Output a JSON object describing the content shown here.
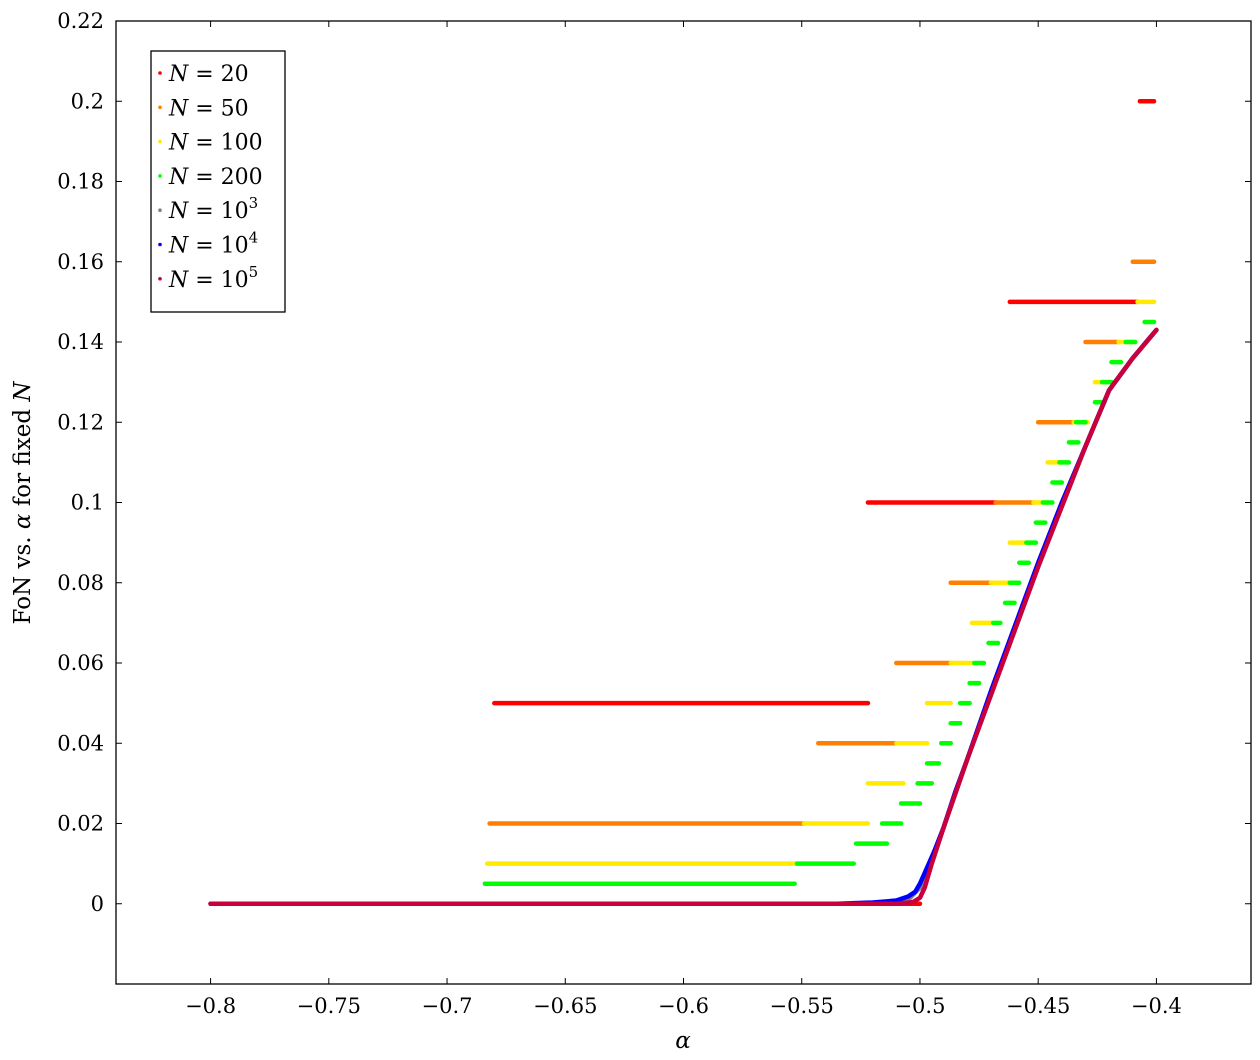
{
  "chart_data": {
    "type": "scatter",
    "title": "",
    "xlabel": "α",
    "ylabel_parts": [
      "FoN vs. ",
      "α",
      " for fixed ",
      "N"
    ],
    "xlim": [
      -0.84,
      -0.36
    ],
    "ylim": [
      -0.02,
      0.22
    ],
    "x_ticks": [
      -0.8,
      -0.75,
      -0.7,
      -0.65,
      -0.6,
      -0.55,
      -0.5,
      -0.45,
      -0.4
    ],
    "x_tick_labels": [
      "−0.8",
      "−0.75",
      "−0.7",
      "−0.65",
      "−0.6",
      "−0.55",
      "−0.5",
      "−0.45",
      "−0.4"
    ],
    "y_ticks": [
      0,
      0.02,
      0.04,
      0.06,
      0.08,
      0.1,
      0.12,
      0.14,
      0.16,
      0.18,
      0.2,
      0.22
    ],
    "y_tick_labels": [
      "0",
      "0.02",
      "0.04",
      "0.06",
      "0.08",
      "0.1",
      "0.12",
      "0.14",
      "0.16",
      "0.18",
      "0.2",
      "0.22"
    ],
    "grid": false,
    "legend_position": "top-left",
    "series": [
      {
        "name": "N = 20",
        "legend": {
          "var": "N",
          "eq": " = ",
          "base": "20",
          "exp": ""
        },
        "color": "#ff0000",
        "segments": [
          {
            "y": 0.0,
            "x": [
              -0.8,
              -0.5
            ]
          },
          {
            "y": 0.05,
            "x": [
              -0.68,
              -0.522
            ]
          },
          {
            "y": 0.1,
            "x": [
              -0.522,
              -0.468
            ]
          },
          {
            "y": 0.15,
            "x": [
              -0.462,
              -0.408
            ]
          },
          {
            "y": 0.2,
            "x": [
              -0.407,
              -0.401
            ]
          }
        ]
      },
      {
        "name": "N = 50",
        "legend": {
          "var": "N",
          "eq": " = ",
          "base": "50",
          "exp": ""
        },
        "color": "#ff8000",
        "segments": [
          {
            "y": 0.02,
            "x": [
              -0.682,
              -0.549
            ]
          },
          {
            "y": 0.04,
            "x": [
              -0.543,
              -0.51
            ]
          },
          {
            "y": 0.06,
            "x": [
              -0.51,
              -0.487
            ]
          },
          {
            "y": 0.08,
            "x": [
              -0.487,
              -0.47
            ]
          },
          {
            "y": 0.1,
            "x": [
              -0.468,
              -0.452
            ]
          },
          {
            "y": 0.12,
            "x": [
              -0.45,
              -0.435
            ]
          },
          {
            "y": 0.14,
            "x": [
              -0.43,
              -0.416
            ]
          },
          {
            "y": 0.16,
            "x": [
              -0.41,
              -0.401
            ]
          }
        ]
      },
      {
        "name": "N = 100",
        "legend": {
          "var": "N",
          "eq": " = ",
          "base": "100",
          "exp": ""
        },
        "color": "#ffea00",
        "segments": [
          {
            "y": 0.01,
            "x": [
              -0.683,
              -0.552
            ]
          },
          {
            "y": 0.02,
            "x": [
              -0.549,
              -0.522
            ]
          },
          {
            "y": 0.03,
            "x": [
              -0.522,
              -0.507
            ]
          },
          {
            "y": 0.04,
            "x": [
              -0.51,
              -0.497
            ]
          },
          {
            "y": 0.05,
            "x": [
              -0.497,
              -0.487
            ]
          },
          {
            "y": 0.06,
            "x": [
              -0.487,
              -0.478
            ]
          },
          {
            "y": 0.07,
            "x": [
              -0.478,
              -0.47
            ]
          },
          {
            "y": 0.08,
            "x": [
              -0.47,
              -0.462
            ]
          },
          {
            "y": 0.09,
            "x": [
              -0.462,
              -0.455
            ]
          },
          {
            "y": 0.1,
            "x": [
              -0.452,
              -0.446
            ]
          },
          {
            "y": 0.11,
            "x": [
              -0.446,
              -0.44
            ]
          },
          {
            "y": 0.12,
            "x": [
              -0.435,
              -0.429
            ]
          },
          {
            "y": 0.13,
            "x": [
              -0.426,
              -0.42
            ]
          },
          {
            "y": 0.14,
            "x": [
              -0.416,
              -0.41
            ]
          },
          {
            "y": 0.15,
            "x": [
              -0.408,
              -0.401
            ]
          }
        ]
      },
      {
        "name": "N = 200",
        "legend": {
          "var": "N",
          "eq": " = ",
          "base": "200",
          "exp": ""
        },
        "color": "#00ff00",
        "segments": [
          {
            "y": 0.005,
            "x": [
              -0.684,
              -0.553
            ]
          },
          {
            "y": 0.01,
            "x": [
              -0.552,
              -0.528
            ]
          },
          {
            "y": 0.015,
            "x": [
              -0.527,
              -0.514
            ]
          },
          {
            "y": 0.02,
            "x": [
              -0.516,
              -0.508
            ]
          },
          {
            "y": 0.025,
            "x": [
              -0.508,
              -0.5
            ]
          },
          {
            "y": 0.03,
            "x": [
              -0.501,
              -0.495
            ]
          },
          {
            "y": 0.035,
            "x": [
              -0.497,
              -0.492
            ]
          },
          {
            "y": 0.04,
            "x": [
              -0.491,
              -0.487
            ]
          },
          {
            "y": 0.045,
            "x": [
              -0.487,
              -0.483
            ]
          },
          {
            "y": 0.05,
            "x": [
              -0.483,
              -0.479
            ]
          },
          {
            "y": 0.055,
            "x": [
              -0.479,
              -0.475
            ]
          },
          {
            "y": 0.06,
            "x": [
              -0.477,
              -0.473
            ]
          },
          {
            "y": 0.065,
            "x": [
              -0.471,
              -0.467
            ]
          },
          {
            "y": 0.07,
            "x": [
              -0.469,
              -0.466
            ]
          },
          {
            "y": 0.075,
            "x": [
              -0.464,
              -0.46
            ]
          },
          {
            "y": 0.08,
            "x": [
              -0.462,
              -0.458
            ]
          },
          {
            "y": 0.085,
            "x": [
              -0.458,
              -0.454
            ]
          },
          {
            "y": 0.09,
            "x": [
              -0.455,
              -0.451
            ]
          },
          {
            "y": 0.095,
            "x": [
              -0.451,
              -0.447
            ]
          },
          {
            "y": 0.1,
            "x": [
              -0.448,
              -0.444
            ]
          },
          {
            "y": 0.105,
            "x": [
              -0.444,
              -0.44
            ]
          },
          {
            "y": 0.11,
            "x": [
              -0.441,
              -0.437
            ]
          },
          {
            "y": 0.115,
            "x": [
              -0.437,
              -0.433
            ]
          },
          {
            "y": 0.12,
            "x": [
              -0.434,
              -0.43
            ]
          },
          {
            "y": 0.125,
            "x": [
              -0.426,
              -0.422
            ]
          },
          {
            "y": 0.13,
            "x": [
              -0.423,
              -0.419
            ]
          },
          {
            "y": 0.135,
            "x": [
              -0.419,
              -0.415
            ]
          },
          {
            "y": 0.14,
            "x": [
              -0.413,
              -0.409
            ]
          },
          {
            "y": 0.145,
            "x": [
              -0.405,
              -0.401
            ]
          }
        ]
      },
      {
        "name": "N = 10^3",
        "legend": {
          "var": "N",
          "eq": " = ",
          "base": "10",
          "exp": "3"
        },
        "color": "#808080",
        "curve": [
          [
            -0.8,
            0
          ],
          [
            -0.53,
            0
          ],
          [
            -0.51,
            0.0003
          ],
          [
            -0.505,
            0.001
          ],
          [
            -0.5,
            0.004
          ],
          [
            -0.495,
            0.011
          ],
          [
            -0.49,
            0.019
          ],
          [
            -0.48,
            0.036
          ],
          [
            -0.47,
            0.052
          ],
          [
            -0.46,
            0.068
          ],
          [
            -0.45,
            0.084
          ],
          [
            -0.44,
            0.099
          ],
          [
            -0.43,
            0.114
          ],
          [
            -0.42,
            0.128
          ],
          [
            -0.41,
            0.136
          ],
          [
            -0.4,
            0.143
          ]
        ]
      },
      {
        "name": "N = 10^4",
        "legend": {
          "var": "N",
          "eq": " = ",
          "base": "10",
          "exp": "4"
        },
        "color": "#0000ff",
        "curve": [
          [
            -0.8,
            0
          ],
          [
            -0.535,
            0
          ],
          [
            -0.52,
            0.0003
          ],
          [
            -0.51,
            0.0008
          ],
          [
            -0.505,
            0.0018
          ],
          [
            -0.502,
            0.003
          ],
          [
            -0.5,
            0.005
          ],
          [
            -0.497,
            0.009
          ],
          [
            -0.494,
            0.013
          ],
          [
            -0.49,
            0.019
          ],
          [
            -0.485,
            0.028
          ],
          [
            -0.48,
            0.036
          ],
          [
            -0.47,
            0.053
          ],
          [
            -0.46,
            0.069
          ],
          [
            -0.45,
            0.085
          ],
          [
            -0.44,
            0.1
          ],
          [
            -0.43,
            0.114
          ],
          [
            -0.42,
            0.128
          ],
          [
            -0.41,
            0.136
          ],
          [
            -0.4,
            0.143
          ]
        ]
      },
      {
        "name": "N = 10^5",
        "legend": {
          "var": "N",
          "eq": " = ",
          "base": "10",
          "exp": "5"
        },
        "color": "#c8003c",
        "curve": [
          [
            -0.8,
            0
          ],
          [
            -0.51,
            0
          ],
          [
            -0.503,
            0.0004
          ],
          [
            -0.5,
            0.0015
          ],
          [
            -0.498,
            0.004
          ],
          [
            -0.495,
            0.01
          ],
          [
            -0.49,
            0.019
          ],
          [
            -0.48,
            0.036
          ],
          [
            -0.47,
            0.052
          ],
          [
            -0.46,
            0.068
          ],
          [
            -0.45,
            0.084
          ],
          [
            -0.44,
            0.099
          ],
          [
            -0.43,
            0.114
          ],
          [
            -0.42,
            0.128
          ],
          [
            -0.41,
            0.136
          ],
          [
            -0.4,
            0.143
          ]
        ]
      }
    ]
  }
}
